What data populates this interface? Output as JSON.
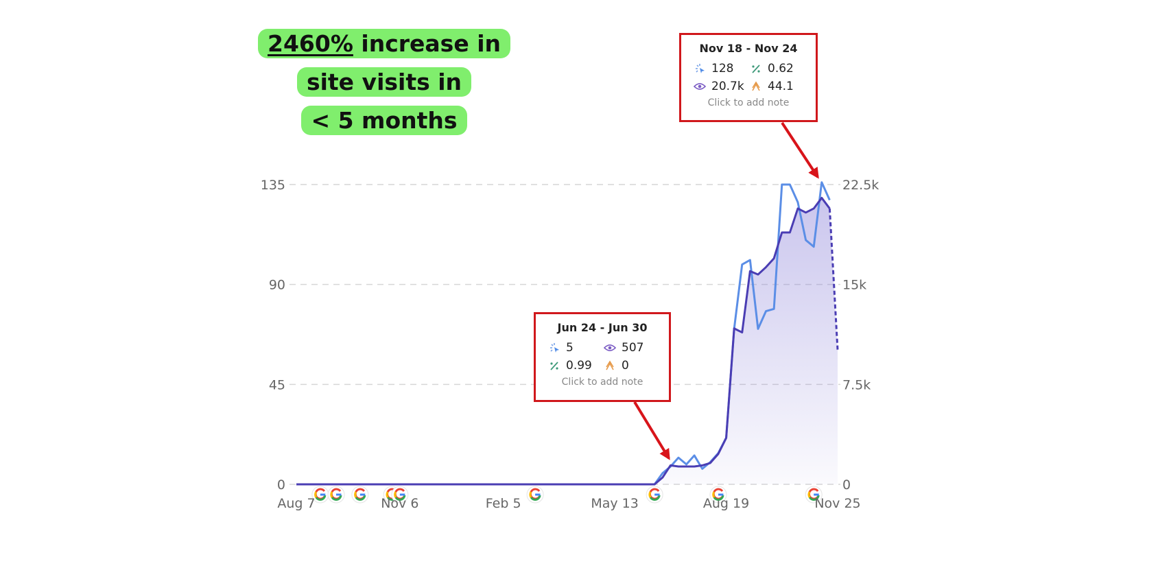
{
  "headline": {
    "highlight": "2460%",
    "line1_rest": " increase in",
    "line2": "site visits in",
    "line3": "< 5 months",
    "background": "#80ee6d"
  },
  "tooltips": [
    {
      "title": "Nov 18 - Nov 24",
      "clicks": "128",
      "ctr": "0.62",
      "impressions": "20.7k",
      "position": "44.1",
      "note": "Click to add note"
    },
    {
      "title": "Jun 24 - Jun 30",
      "clicks": "5",
      "impressions": "507",
      "ctr": "0.99",
      "position": "0",
      "note": "Click to add note"
    }
  ],
  "colors": {
    "clicks": "#5b8ee6",
    "impressions": "#4a3db3",
    "area": "#8a80d8",
    "tooltip_border": "#d0181c",
    "arrow": "#d8141a",
    "grid": "#d6d6d6"
  },
  "chart_data": {
    "type": "line",
    "grid": true,
    "x": [
      "Aug 7",
      "Aug 14",
      "Aug 21",
      "Aug 28",
      "Sep 4",
      "Sep 11",
      "Sep 18",
      "Sep 25",
      "Oct 2",
      "Oct 9",
      "Oct 16",
      "Oct 23",
      "Oct 30",
      "Nov 6",
      "Nov 13",
      "Nov 20",
      "Nov 27",
      "Dec 4",
      "Dec 11",
      "Dec 18",
      "Dec 25",
      "Jan 1",
      "Jan 8",
      "Jan 15",
      "Jan 22",
      "Jan 29",
      "Feb 5",
      "Feb 12",
      "Feb 19",
      "Feb 26",
      "Mar 4",
      "Mar 11",
      "Mar 18",
      "Mar 25",
      "Apr 1",
      "Apr 8",
      "Apr 15",
      "Apr 22",
      "Apr 29",
      "May 6",
      "May 13",
      "May 20",
      "May 27",
      "Jun 3",
      "Jun 10",
      "Jun 17",
      "Jun 24",
      "Jul 1",
      "Jul 8",
      "Jul 15",
      "Jul 22",
      "Jul 29",
      "Aug 5",
      "Aug 12",
      "Aug 19",
      "Aug 26",
      "Sep 2",
      "Sep 9",
      "Sep 16",
      "Sep 23",
      "Sep 30",
      "Oct 7",
      "Oct 14",
      "Oct 21",
      "Oct 28",
      "Nov 4",
      "Nov 11",
      "Nov 18",
      "Nov 25"
    ],
    "x_tick_labels": [
      "Aug 7",
      "Nov 6",
      "Feb 5",
      "May 13",
      "Aug 19",
      "Nov 25"
    ],
    "y_left": {
      "ticks": [
        0,
        45,
        90,
        135
      ],
      "tick_labels": [
        "0",
        "45",
        "90",
        "135"
      ],
      "range": [
        0,
        135
      ]
    },
    "y_right": {
      "ticks": [
        0,
        7500,
        15000,
        22500
      ],
      "tick_labels": [
        "0",
        "7.5k",
        "15k",
        "22.5k"
      ],
      "range": [
        0,
        22500
      ]
    },
    "series": [
      {
        "axis": "left",
        "values": [
          0,
          0,
          0,
          0,
          0,
          0,
          0,
          0,
          0,
          0,
          0,
          0,
          0,
          0,
          0,
          0,
          0,
          0,
          0,
          0,
          0,
          0,
          0,
          0,
          0,
          0,
          0,
          0,
          0,
          0,
          0,
          0,
          0,
          0,
          0,
          0,
          0,
          0,
          0,
          0,
          0,
          0,
          0,
          0,
          0,
          0,
          5,
          8,
          12,
          9,
          13,
          7,
          10,
          14,
          21,
          70,
          99,
          101,
          70,
          78,
          79,
          135,
          135,
          127,
          110,
          107,
          136,
          128,
          null
        ]
      },
      {
        "axis": "right",
        "values": [
          0,
          0,
          0,
          0,
          0,
          0,
          0,
          0,
          0,
          0,
          0,
          0,
          0,
          0,
          0,
          0,
          0,
          0,
          0,
          0,
          0,
          0,
          0,
          0,
          0,
          0,
          0,
          0,
          0,
          0,
          0,
          0,
          0,
          0,
          0,
          0,
          0,
          0,
          0,
          0,
          0,
          0,
          0,
          0,
          0,
          0,
          507,
          1420,
          1340,
          1340,
          1340,
          1420,
          1600,
          2280,
          3480,
          11700,
          11400,
          16000,
          15750,
          16300,
          16960,
          18900,
          18900,
          20700,
          20400,
          20700,
          21500,
          20700,
          10100
        ],
        "last_point_partial": true
      }
    ],
    "google_update_markers": [
      "Aug 28",
      "Sep 11",
      "Oct 2",
      "Oct 30",
      "Nov 6",
      "Mar 4",
      "Jun 17",
      "Aug 12",
      "Nov 4"
    ]
  }
}
